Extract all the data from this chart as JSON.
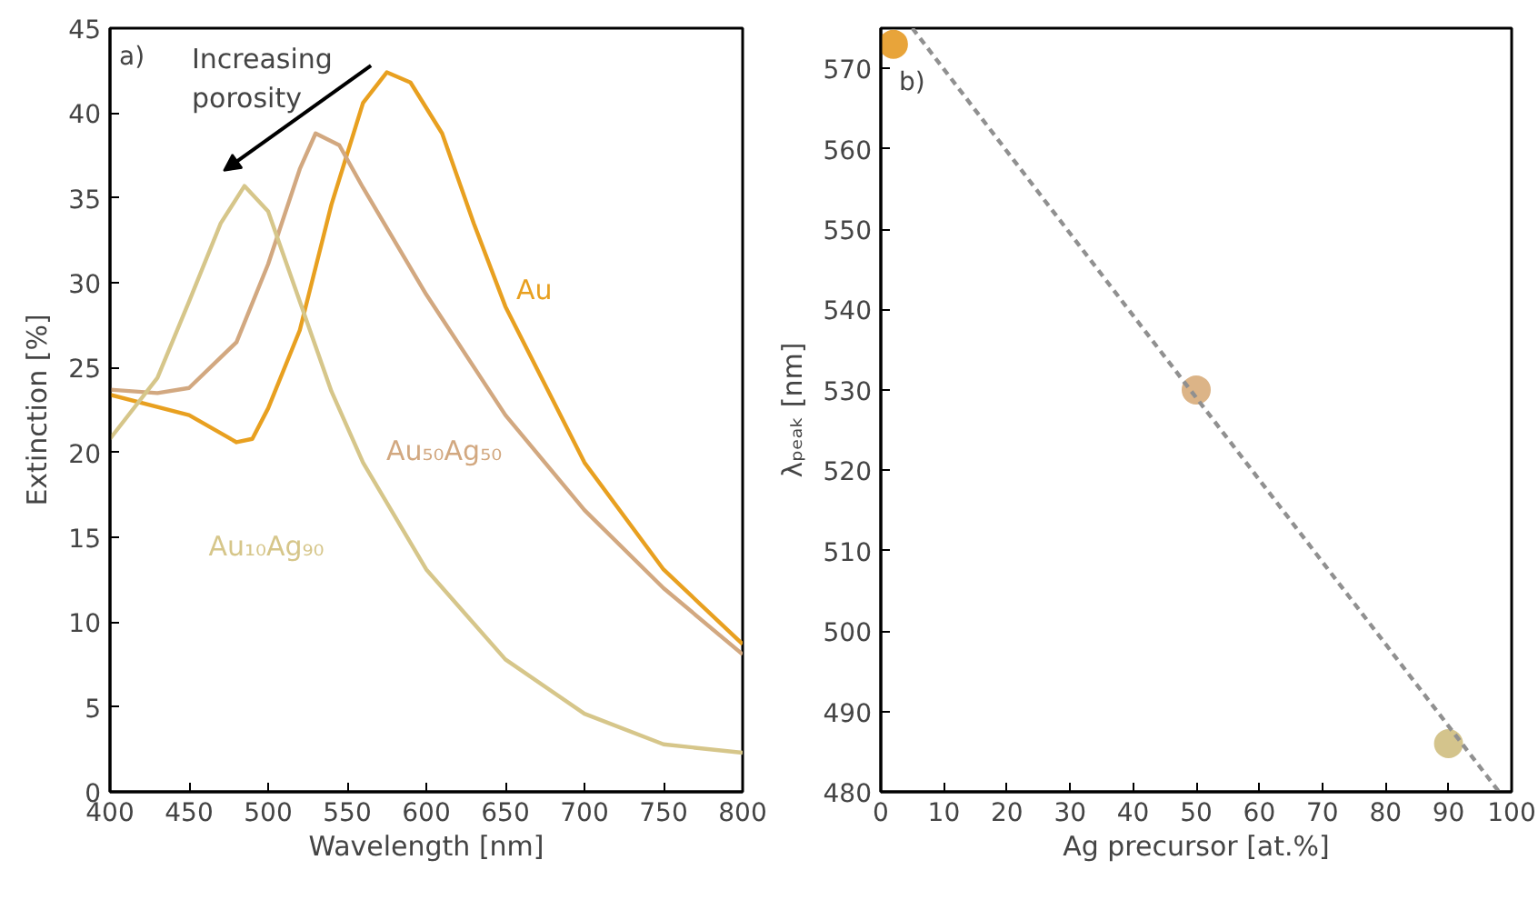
{
  "chart_data": [
    {
      "type": "line",
      "xlabel": "Wavelength [nm]",
      "ylabel": "Extinction [%]",
      "xlim": [
        400,
        800
      ],
      "xticks": [
        400,
        450,
        500,
        550,
        600,
        650,
        700,
        750,
        800
      ],
      "ylim": [
        0,
        45
      ],
      "yticks": [
        0,
        5,
        10,
        15,
        20,
        25,
        30,
        35,
        40,
        45
      ],
      "grid": false,
      "legend": false,
      "annotations": [
        "a)",
        "Increasing\nporosity"
      ],
      "series": [
        {
          "name": "Au",
          "color": "#e8a020",
          "x": [
            400,
            450,
            480,
            490,
            500,
            520,
            540,
            560,
            575,
            590,
            610,
            630,
            650,
            700,
            750,
            800
          ],
          "values": [
            23.4,
            22.2,
            20.6,
            20.8,
            22.6,
            27.2,
            34.6,
            40.6,
            42.4,
            41.8,
            38.8,
            33.5,
            28.6,
            19.4,
            13.1,
            8.7
          ]
        },
        {
          "name": "Au₅₀Ag₅₀",
          "color": "#d2a880",
          "x": [
            400,
            430,
            450,
            480,
            500,
            520,
            530,
            545,
            560,
            600,
            650,
            700,
            750,
            800
          ],
          "values": [
            23.7,
            23.5,
            23.8,
            26.5,
            31.1,
            36.7,
            38.8,
            38.1,
            35.6,
            29.3,
            22.2,
            16.6,
            12.0,
            8.1
          ]
        },
        {
          "name": "Au₁₀Ag₉₀",
          "color": "#d6c68a",
          "x": [
            400,
            430,
            450,
            470,
            485,
            500,
            520,
            540,
            560,
            600,
            650,
            700,
            750,
            800
          ],
          "values": [
            20.8,
            24.4,
            28.9,
            33.5,
            35.7,
            34.2,
            28.9,
            23.6,
            19.4,
            13.1,
            7.8,
            4.6,
            2.8,
            2.3
          ]
        }
      ]
    },
    {
      "type": "scatter",
      "xlabel": "Ag precursor [at.%]",
      "ylabel": "λₚₑₐₖ [nm]",
      "xlim": [
        0,
        100
      ],
      "xticks": [
        0,
        10,
        20,
        30,
        40,
        50,
        60,
        70,
        80,
        90,
        100
      ],
      "ylim": [
        480,
        575
      ],
      "yticks": [
        480,
        490,
        500,
        510,
        520,
        530,
        540,
        550,
        560,
        570
      ],
      "grid": false,
      "legend": false,
      "annotations": [
        "b)"
      ],
      "series": [
        {
          "type": "scatter",
          "marker": "circle",
          "x": [
            2,
            50,
            90
          ],
          "values": [
            573,
            530,
            486
          ],
          "colors": [
            "#e8a43a",
            "#dcb487",
            "#d4c48c"
          ]
        },
        {
          "type": "line",
          "line_style": "dashed",
          "color": "#909090",
          "x": [
            5,
            98
          ],
          "values": [
            575,
            480
          ]
        }
      ]
    }
  ]
}
